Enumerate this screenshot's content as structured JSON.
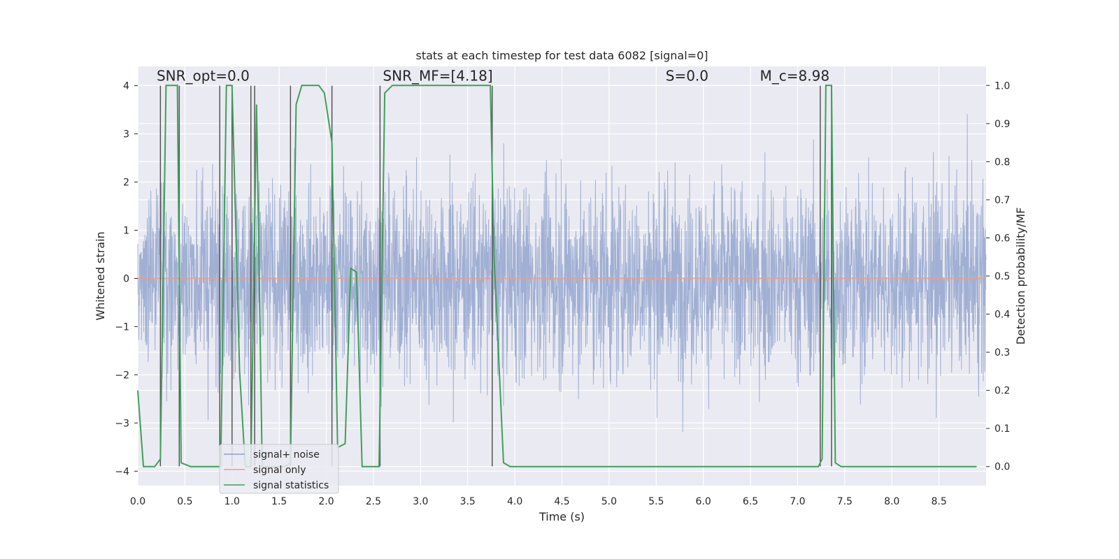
{
  "chart_data": {
    "type": "line",
    "title": "stats at each timestep for test data 6082 [signal=0]",
    "xlabel": "Time (s)",
    "ylabel": "Whitened strain",
    "ylabel_right": "Detection probability/MF",
    "xlim": [
      0.0,
      9.0
    ],
    "ylim": [
      -4.3,
      4.4
    ],
    "ylim_right": [
      -0.05,
      1.05
    ],
    "x_ticks": [
      "0.0",
      "0.5",
      "1.0",
      "1.5",
      "2.0",
      "2.5",
      "3.0",
      "3.5",
      "4.0",
      "4.5",
      "5.0",
      "5.5",
      "6.0",
      "6.5",
      "7.0",
      "7.5",
      "8.0",
      "8.5"
    ],
    "x_tick_values": [
      0.0,
      0.5,
      1.0,
      1.5,
      2.0,
      2.5,
      3.0,
      3.5,
      4.0,
      4.5,
      5.0,
      5.5,
      6.0,
      6.5,
      7.0,
      7.5,
      8.0,
      8.5
    ],
    "y_ticks": [
      "4",
      "3",
      "2",
      "1",
      "0",
      "−1",
      "−2",
      "−3",
      "−4"
    ],
    "y_tick_values": [
      4,
      3,
      2,
      1,
      0,
      -1,
      -2,
      -3,
      -4
    ],
    "y_right_ticks": [
      "1.0",
      "0.9",
      "0.8",
      "0.7",
      "0.6",
      "0.5",
      "0.4",
      "0.3",
      "0.2",
      "0.1",
      "0.0"
    ],
    "y_right_tick_values": [
      1.0,
      0.9,
      0.8,
      0.7,
      0.6,
      0.5,
      0.4,
      0.3,
      0.2,
      0.1,
      0.0
    ],
    "grid": true,
    "legend_position": "lower-left",
    "annotations": [
      {
        "text": "SNR_opt=0.0",
        "x": 0.2,
        "y": 4.1
      },
      {
        "text": "SNR_MF=[4.18]",
        "x": 2.6,
        "y": 4.1
      },
      {
        "text": "S=0.0",
        "x": 5.6,
        "y": 4.1
      },
      {
        "text": "M_c=8.98",
        "x": 6.6,
        "y": 4.1
      }
    ],
    "series": [
      {
        "name": "signal+ noise",
        "color": "#8da0cb",
        "kind": "noise",
        "amplitude_std": 1.0
      },
      {
        "name": "signal only",
        "color": "#e8a08a",
        "kind": "flat",
        "value": 0.0
      },
      {
        "name": "signal statistics",
        "color": "#3fa05a",
        "axis": "right",
        "x": [
          0.0,
          0.06,
          0.18,
          0.24,
          0.3,
          0.42,
          0.46,
          0.56,
          0.7,
          0.88,
          0.94,
          1.0,
          1.08,
          1.14,
          1.2,
          1.26,
          1.32,
          1.56,
          1.62,
          1.68,
          1.74,
          1.92,
          1.98,
          2.06,
          2.12,
          2.2,
          2.26,
          2.32,
          2.38,
          2.44,
          2.56,
          2.62,
          2.7,
          2.8,
          3.74,
          3.78,
          3.88,
          3.95,
          7.22,
          7.26,
          7.3,
          7.36,
          7.4,
          7.46,
          7.52,
          8.9
        ],
        "values": [
          0.2,
          0.0,
          0.0,
          0.02,
          1.0,
          1.0,
          0.01,
          0.0,
          0.0,
          0.0,
          1.0,
          1.0,
          0.25,
          0.0,
          0.0,
          0.95,
          0.0,
          0.0,
          0.01,
          0.95,
          1.0,
          1.0,
          0.98,
          0.85,
          0.05,
          0.06,
          0.52,
          0.51,
          0.0,
          0.0,
          0.0,
          0.98,
          1.0,
          1.0,
          1.0,
          0.55,
          0.01,
          0.0,
          0.0,
          0.02,
          1.0,
          1.0,
          0.01,
          0.0,
          0.0,
          0.0
        ]
      },
      {
        "name": "",
        "color": "#555555",
        "kind": "vlines",
        "x": [
          0.24,
          0.44,
          0.87,
          1.0,
          1.2,
          1.24,
          1.62,
          2.06,
          2.57,
          3.76,
          7.24,
          7.36
        ]
      }
    ],
    "legend": [
      "signal+ noise",
      "signal only",
      "signal statistics"
    ]
  }
}
